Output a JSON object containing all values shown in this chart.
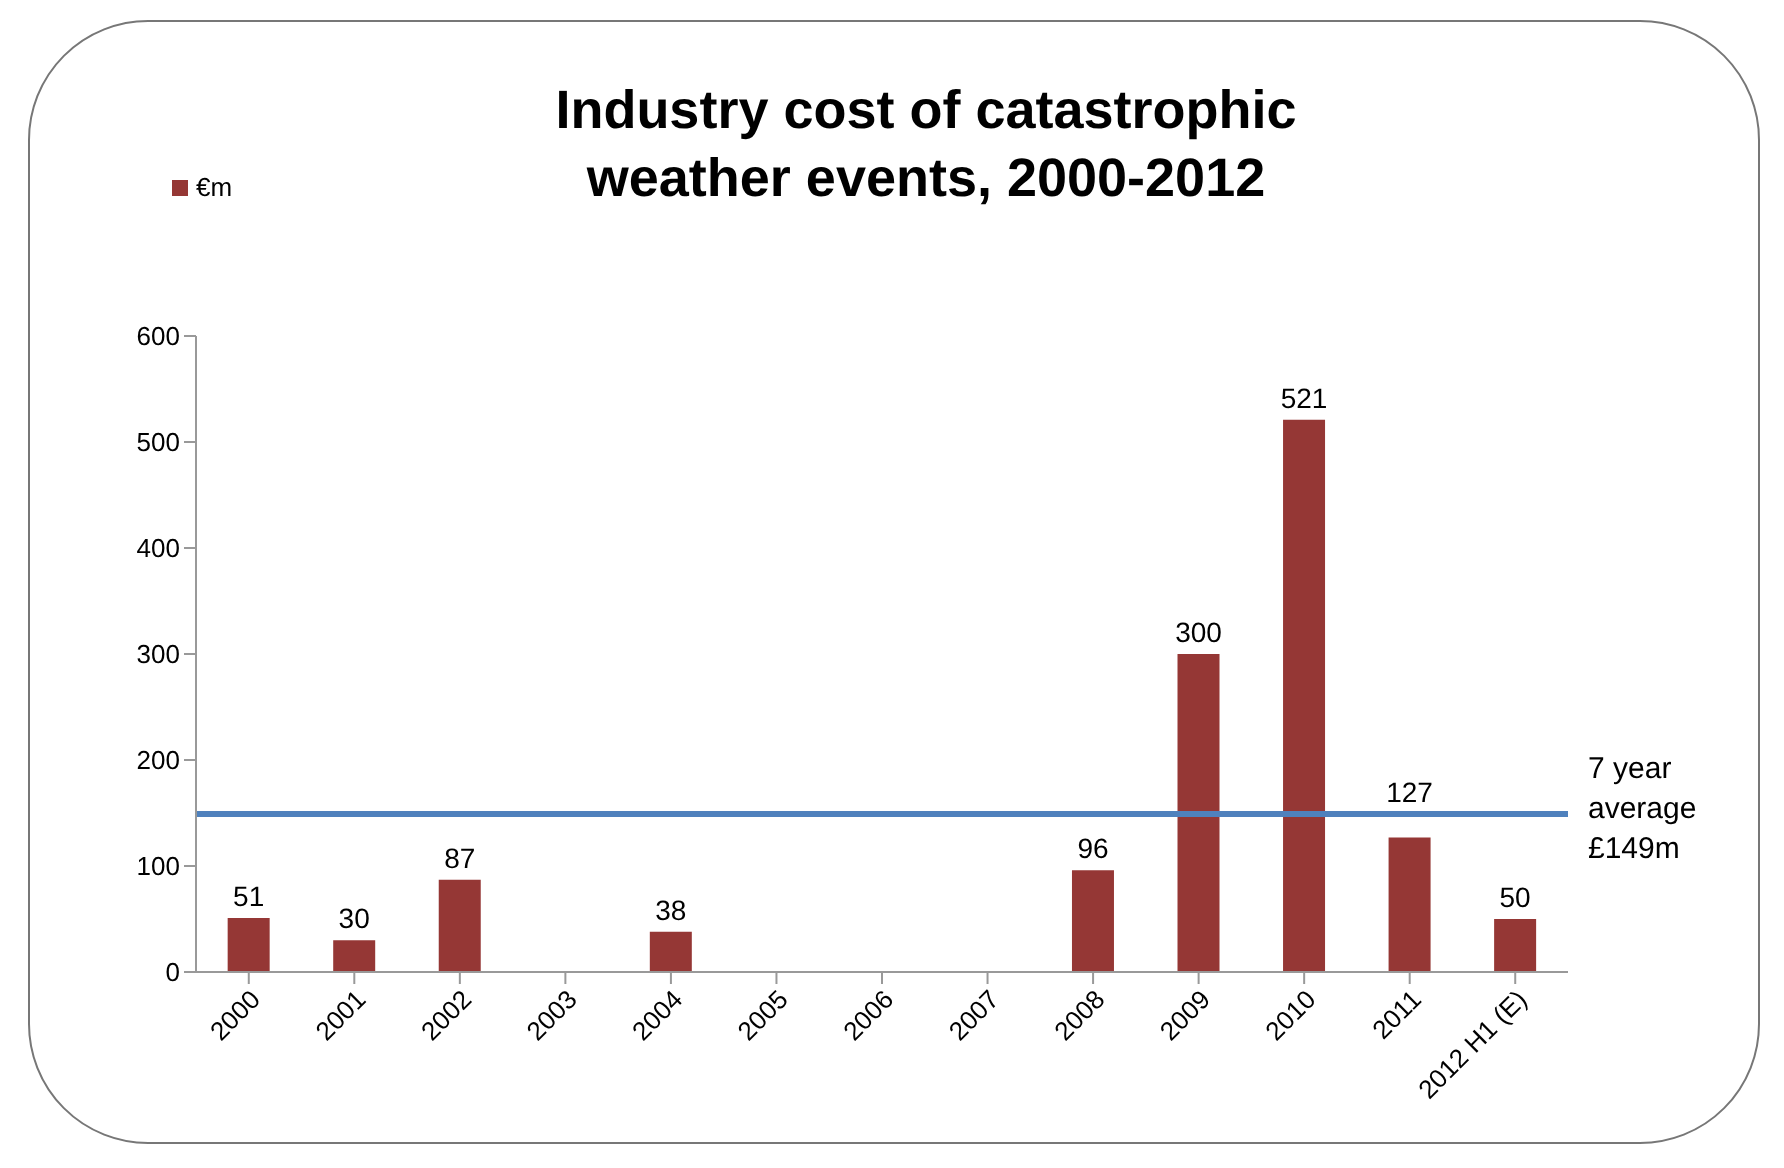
{
  "chart_data": {
    "type": "bar",
    "title": "Industry cost of catastrophic weather events, 2000-2012",
    "categories": [
      "2000",
      "2001",
      "2002",
      "2003",
      "2004",
      "2005",
      "2006",
      "2007",
      "2008",
      "2009",
      "2010",
      "2011",
      "2012 H1 (E)"
    ],
    "series": [
      {
        "name": "€m",
        "color": "#953735",
        "values": [
          51,
          30,
          87,
          0,
          38,
          0,
          0,
          0,
          96,
          300,
          521,
          127,
          50
        ]
      }
    ],
    "value_labels": [
      "51",
      "30",
      "87",
      null,
      "38",
      null,
      null,
      null,
      "96",
      "300",
      "521",
      "127",
      "50"
    ],
    "ylim": [
      0,
      600
    ],
    "yticks": [
      0,
      100,
      200,
      300,
      400,
      500,
      600
    ],
    "grid": false,
    "legend": "top left",
    "ref_lines": [
      {
        "axis": "y",
        "value": 149,
        "label": "7 year average £149m",
        "color": "#4f81bd"
      }
    ]
  }
}
